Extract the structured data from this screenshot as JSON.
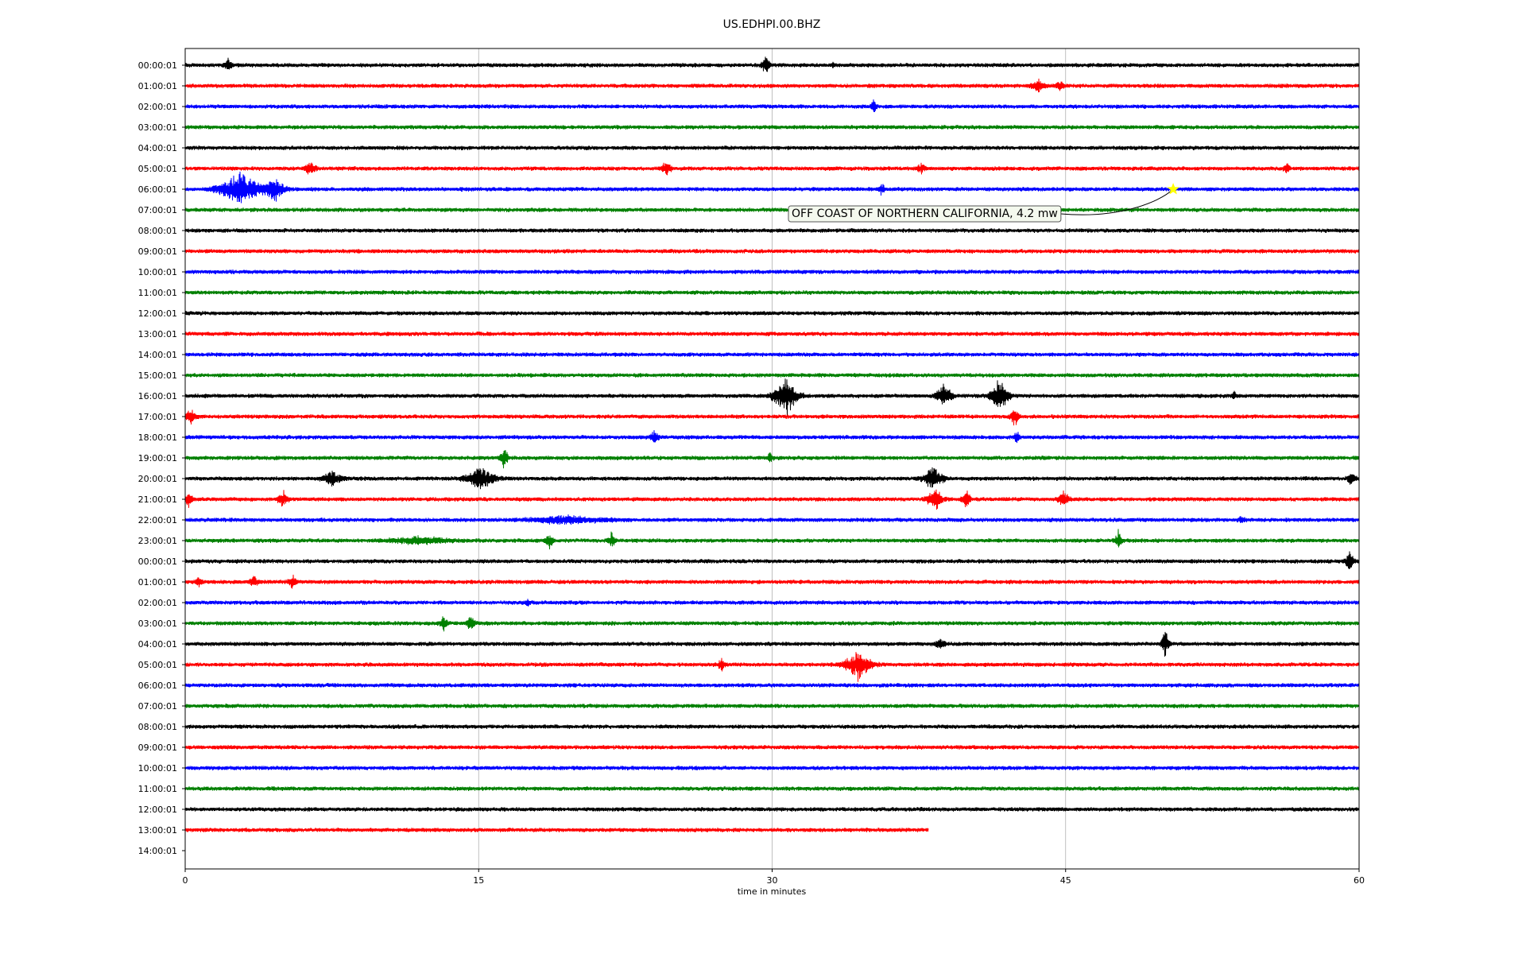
{
  "chart_data": {
    "type": "line",
    "title": "US.EDHPI.00.BHZ",
    "xlabel": "time in minutes",
    "ylabel": "",
    "xlim": [
      0,
      60
    ],
    "x_ticks": [
      "0",
      "15",
      "30",
      "45",
      "60"
    ],
    "x_tick_values": [
      0,
      15,
      30,
      45,
      60
    ],
    "grid_x": true,
    "colors": [
      "#000000",
      "#ff0000",
      "#0000ff",
      "#008000"
    ],
    "rows": [
      {
        "label": "00:00:01",
        "color": "#000000",
        "end": 60,
        "events": [
          [
            2.2,
            0.5,
            0.4
          ],
          [
            29.7,
            0.7,
            0.4
          ],
          [
            33.1,
            0.2,
            0.2
          ]
        ]
      },
      {
        "label": "01:00:01",
        "color": "#ff0000",
        "end": 60,
        "events": [
          [
            43.6,
            0.6,
            0.6
          ],
          [
            44.7,
            0.4,
            0.4
          ]
        ]
      },
      {
        "label": "02:00:01",
        "color": "#0000ff",
        "end": 60,
        "events": [
          [
            35.2,
            0.6,
            0.3
          ]
        ]
      },
      {
        "label": "03:00:01",
        "color": "#008000",
        "end": 60,
        "events": []
      },
      {
        "label": "04:00:01",
        "color": "#000000",
        "end": 60,
        "events": []
      },
      {
        "label": "05:00:01",
        "color": "#ff0000",
        "end": 60,
        "events": [
          [
            6.4,
            0.5,
            0.6
          ],
          [
            24.6,
            0.5,
            0.5
          ],
          [
            37.6,
            0.4,
            0.4
          ],
          [
            56.3,
            0.5,
            0.3
          ]
        ]
      },
      {
        "label": "06:00:01",
        "color": "#0000ff",
        "end": 60,
        "events": [
          [
            2.8,
            1.2,
            2.2
          ],
          [
            4.6,
            0.9,
            1.0
          ],
          [
            35.6,
            0.4,
            0.3
          ]
        ]
      },
      {
        "label": "07:00:01",
        "color": "#008000",
        "end": 60,
        "events": []
      },
      {
        "label": "08:00:01",
        "color": "#000000",
        "end": 60,
        "events": []
      },
      {
        "label": "09:00:01",
        "color": "#ff0000",
        "end": 60,
        "events": []
      },
      {
        "label": "10:00:01",
        "color": "#0000ff",
        "end": 60,
        "events": []
      },
      {
        "label": "11:00:01",
        "color": "#008000",
        "end": 60,
        "events": []
      },
      {
        "label": "12:00:01",
        "color": "#000000",
        "end": 60,
        "events": []
      },
      {
        "label": "13:00:01",
        "color": "#ff0000",
        "end": 60,
        "events": []
      },
      {
        "label": "14:00:01",
        "color": "#0000ff",
        "end": 60,
        "events": []
      },
      {
        "label": "15:00:01",
        "color": "#008000",
        "end": 60,
        "events": []
      },
      {
        "label": "16:00:01",
        "color": "#000000",
        "end": 60,
        "events": [
          [
            30.7,
            1.6,
            1.2
          ],
          [
            38.8,
            0.9,
            0.8
          ],
          [
            41.6,
            1.3,
            0.9
          ],
          [
            53.6,
            0.4,
            0.2
          ]
        ]
      },
      {
        "label": "17:00:01",
        "color": "#ff0000",
        "end": 60,
        "events": [
          [
            0.3,
            0.6,
            0.5
          ],
          [
            42.4,
            0.8,
            0.4
          ]
        ]
      },
      {
        "label": "18:00:01",
        "color": "#0000ff",
        "end": 60,
        "events": [
          [
            24.0,
            0.5,
            0.4
          ],
          [
            42.5,
            0.5,
            0.3
          ]
        ]
      },
      {
        "label": "19:00:01",
        "color": "#008000",
        "end": 60,
        "events": [
          [
            16.3,
            0.8,
            0.4
          ],
          [
            29.9,
            0.4,
            0.3
          ]
        ]
      },
      {
        "label": "20:00:01",
        "color": "#000000",
        "end": 60,
        "events": [
          [
            7.5,
            0.6,
            1.0
          ],
          [
            15.1,
            0.9,
            1.5
          ],
          [
            38.2,
            0.9,
            1.0
          ],
          [
            59.6,
            0.6,
            0.4
          ]
        ]
      },
      {
        "label": "21:00:01",
        "color": "#ff0000",
        "end": 60,
        "events": [
          [
            0.2,
            0.6,
            0.4
          ],
          [
            5.0,
            0.6,
            0.5
          ],
          [
            38.3,
            0.9,
            0.8
          ],
          [
            39.9,
            0.8,
            0.4
          ],
          [
            44.9,
            0.6,
            0.5
          ]
        ]
      },
      {
        "label": "22:00:01",
        "color": "#0000ff",
        "end": 60,
        "events": [
          [
            19.5,
            0.3,
            4.0
          ],
          [
            54.0,
            0.3,
            0.3
          ]
        ]
      },
      {
        "label": "23:00:01",
        "color": "#008000",
        "end": 60,
        "events": [
          [
            12.0,
            0.3,
            3.0
          ],
          [
            18.6,
            0.6,
            0.4
          ],
          [
            21.8,
            0.6,
            0.4
          ],
          [
            47.7,
            0.8,
            0.3
          ]
        ]
      },
      {
        "label": "00:00:01",
        "color": "#000000",
        "end": 60,
        "events": [
          [
            59.5,
            0.8,
            0.4
          ]
        ]
      },
      {
        "label": "01:00:01",
        "color": "#ff0000",
        "end": 60,
        "events": [
          [
            0.7,
            0.4,
            0.3
          ],
          [
            3.5,
            0.4,
            0.4
          ],
          [
            5.5,
            0.5,
            0.4
          ]
        ]
      },
      {
        "label": "02:00:01",
        "color": "#0000ff",
        "end": 60,
        "events": [
          [
            17.5,
            0.3,
            0.2
          ]
        ]
      },
      {
        "label": "03:00:01",
        "color": "#008000",
        "end": 60,
        "events": [
          [
            13.2,
            0.5,
            0.4
          ],
          [
            14.6,
            0.6,
            0.4
          ]
        ]
      },
      {
        "label": "04:00:01",
        "color": "#000000",
        "end": 60,
        "events": [
          [
            38.6,
            0.5,
            0.4
          ],
          [
            50.1,
            1.2,
            0.4
          ]
        ]
      },
      {
        "label": "05:00:01",
        "color": "#ff0000",
        "end": 60,
        "events": [
          [
            27.4,
            0.6,
            0.3
          ],
          [
            34.4,
            1.2,
            1.3
          ]
        ]
      },
      {
        "label": "06:00:01",
        "color": "#0000ff",
        "end": 60,
        "events": []
      },
      {
        "label": "07:00:01",
        "color": "#008000",
        "end": 60,
        "events": []
      },
      {
        "label": "08:00:01",
        "color": "#000000",
        "end": 60,
        "events": []
      },
      {
        "label": "09:00:01",
        "color": "#ff0000",
        "end": 60,
        "events": []
      },
      {
        "label": "10:00:01",
        "color": "#0000ff",
        "end": 60,
        "events": []
      },
      {
        "label": "11:00:01",
        "color": "#008000",
        "end": 60,
        "events": []
      },
      {
        "label": "12:00:01",
        "color": "#000000",
        "end": 60,
        "events": []
      },
      {
        "label": "13:00:01",
        "color": "#ff0000",
        "end": 38,
        "events": []
      },
      {
        "label": "14:00:01",
        "color": "#0000ff",
        "end": 0,
        "events": []
      }
    ],
    "annotation": {
      "text": "OFF COAST OF NORTHERN CALIFORNIA, 4.2 mw",
      "row": 6,
      "minute": 50.5,
      "marker_color": "#ffff00"
    }
  }
}
